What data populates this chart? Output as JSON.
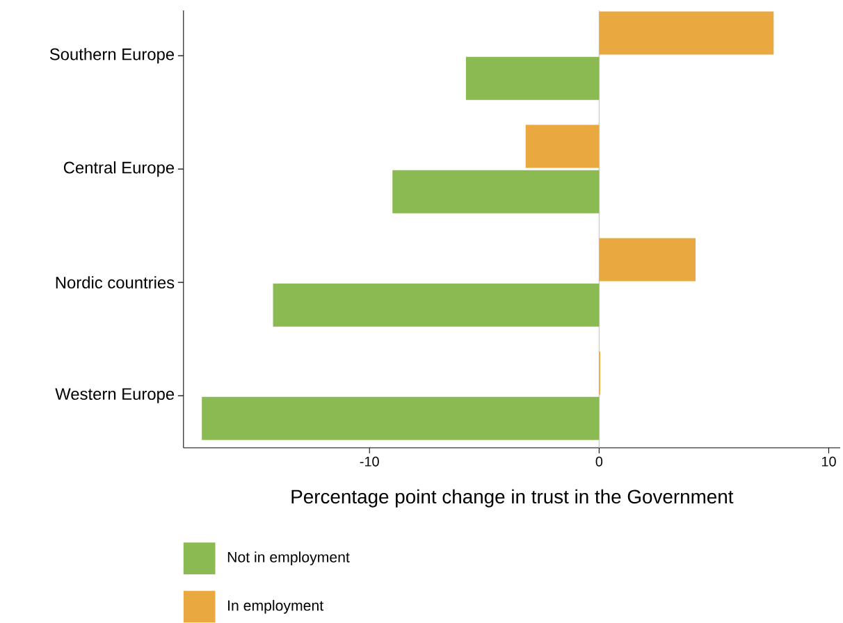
{
  "chart_data": {
    "type": "bar",
    "orientation": "horizontal",
    "xlabel": "Percentage point change in trust in the Government",
    "categories": [
      "Southern Europe",
      "Central Europe",
      "Nordic countries",
      "Western Europe"
    ],
    "series": [
      {
        "name": "Not in employment",
        "color": "#8cba52",
        "values": [
          -5.8,
          -9.0,
          -14.2,
          -17.3
        ]
      },
      {
        "name": "In employment",
        "color": "#eaa940",
        "values": [
          7.6,
          -3.2,
          4.2,
          0.05
        ]
      }
    ],
    "xlim": [
      -18.1,
      10.5
    ],
    "xticks": [
      -10,
      0,
      10
    ],
    "ref_lines": [
      {
        "axis": "x",
        "value": 0,
        "color": "#c8c8c8"
      }
    ],
    "grid": false,
    "legend": "bottom"
  }
}
